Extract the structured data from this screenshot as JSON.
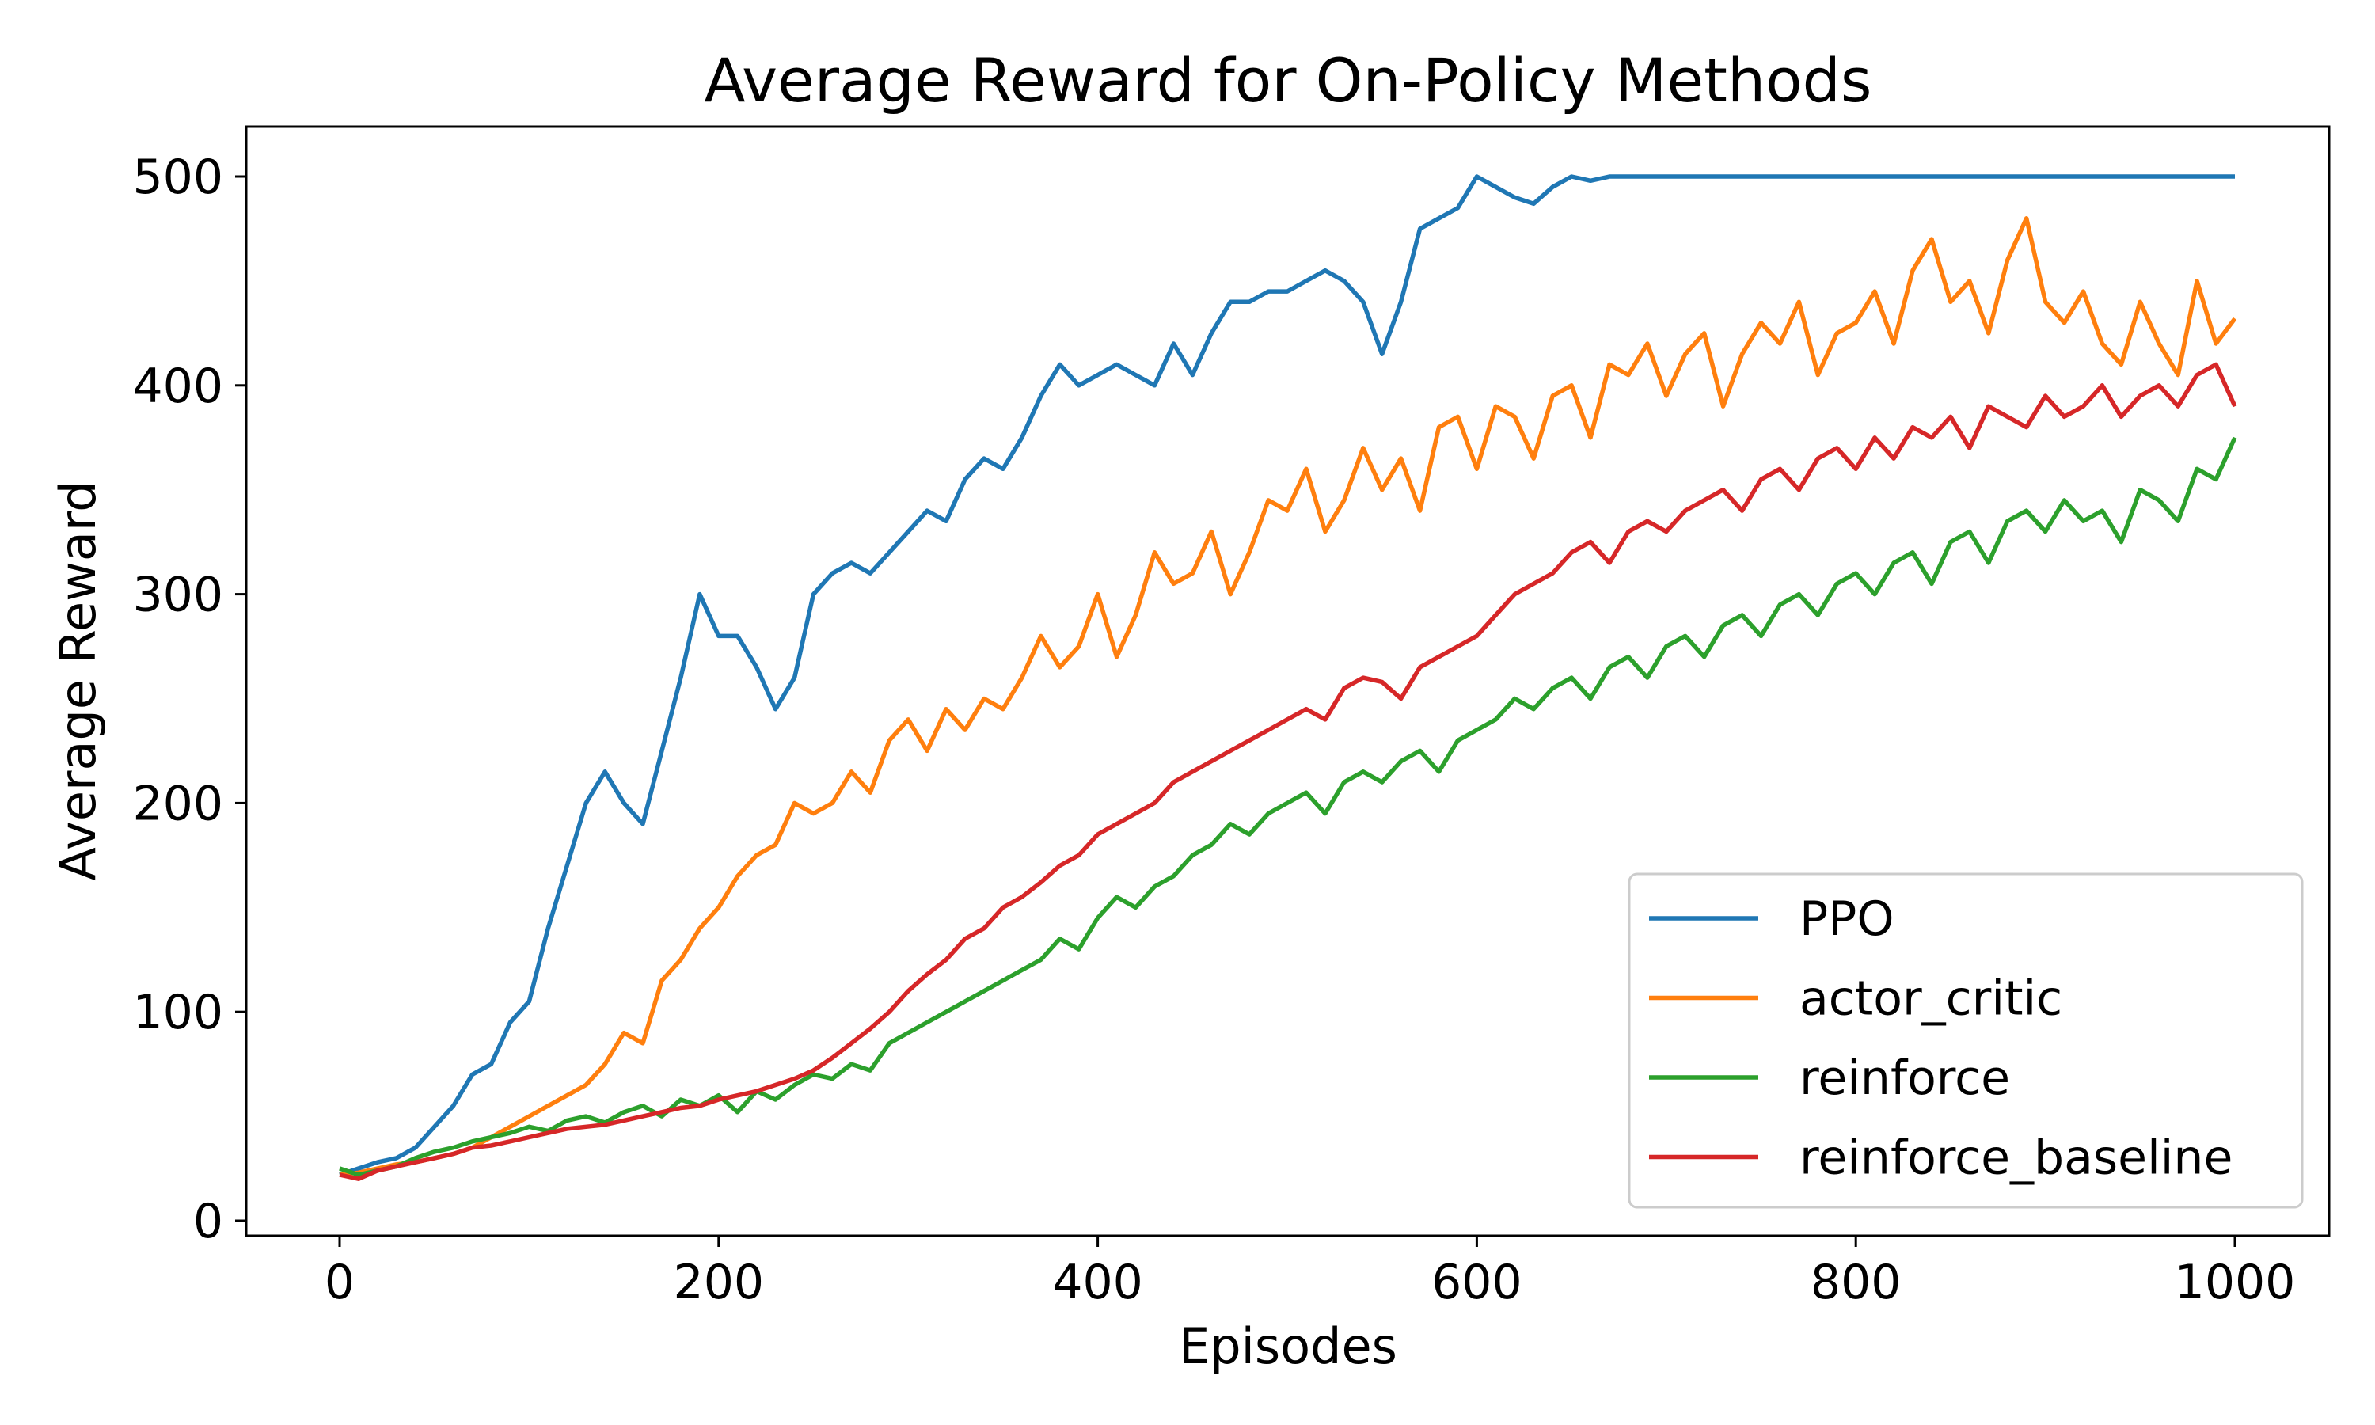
{
  "chart_data": {
    "type": "line",
    "title": "Average Reward for On-Policy Methods",
    "xlabel": "Episodes",
    "ylabel": "Average Reward",
    "xlim": [
      -50,
      1050
    ],
    "ylim": [
      -7,
      525
    ],
    "xticks": [
      0,
      200,
      400,
      600,
      800,
      1000
    ],
    "yticks": [
      0,
      100,
      200,
      300,
      400,
      500
    ],
    "grid": false,
    "legend_position": "lower-right",
    "x": [
      0,
      10,
      20,
      30,
      40,
      50,
      60,
      70,
      80,
      90,
      100,
      110,
      120,
      130,
      140,
      150,
      160,
      170,
      180,
      190,
      200,
      210,
      220,
      230,
      240,
      250,
      260,
      270,
      280,
      290,
      300,
      310,
      320,
      330,
      340,
      350,
      360,
      370,
      380,
      390,
      400,
      410,
      420,
      430,
      440,
      450,
      460,
      470,
      480,
      490,
      500,
      510,
      520,
      530,
      540,
      550,
      560,
      570,
      580,
      590,
      600,
      610,
      620,
      630,
      640,
      650,
      660,
      670,
      680,
      690,
      700,
      710,
      720,
      730,
      740,
      750,
      760,
      770,
      780,
      790,
      800,
      810,
      820,
      830,
      840,
      850,
      860,
      870,
      880,
      890,
      900,
      910,
      920,
      930,
      940,
      950,
      960,
      970,
      980,
      990,
      1000
    ],
    "series": [
      {
        "name": "PPO",
        "color": "#1f77b4",
        "values": [
          22,
          25,
          28,
          30,
          35,
          45,
          55,
          70,
          75,
          95,
          105,
          140,
          170,
          200,
          215,
          200,
          190,
          225,
          260,
          300,
          280,
          280,
          265,
          245,
          260,
          300,
          310,
          315,
          310,
          320,
          330,
          340,
          335,
          355,
          365,
          360,
          375,
          395,
          410,
          400,
          405,
          410,
          405,
          400,
          420,
          405,
          425,
          440,
          440,
          445,
          445,
          450,
          455,
          450,
          440,
          415,
          440,
          475,
          480,
          485,
          500,
          495,
          490,
          487,
          495,
          500,
          498,
          500,
          500,
          500,
          500,
          500,
          500,
          500,
          500,
          500,
          500,
          500,
          500,
          500,
          500,
          500,
          500,
          500,
          500,
          500,
          500,
          500,
          500,
          500,
          500,
          500,
          500,
          500,
          500,
          500,
          500,
          500,
          500,
          500,
          500
        ]
      },
      {
        "name": "actor_critic",
        "color": "#ff7f0e",
        "values": [
          22,
          23,
          25,
          27,
          28,
          30,
          32,
          35,
          40,
          45,
          50,
          55,
          60,
          65,
          75,
          90,
          85,
          115,
          125,
          140,
          150,
          165,
          175,
          180,
          200,
          195,
          200,
          215,
          205,
          230,
          240,
          225,
          245,
          235,
          250,
          245,
          260,
          280,
          265,
          275,
          300,
          270,
          290,
          320,
          305,
          310,
          330,
          300,
          320,
          345,
          340,
          360,
          330,
          345,
          370,
          350,
          365,
          340,
          380,
          385,
          360,
          390,
          385,
          365,
          395,
          400,
          375,
          410,
          405,
          420,
          395,
          415,
          425,
          390,
          415,
          430,
          420,
          440,
          405,
          425,
          430,
          445,
          420,
          455,
          470,
          440,
          450,
          425,
          460,
          480,
          440,
          430,
          445,
          420,
          410,
          440,
          420,
          405,
          450,
          420,
          432
        ]
      },
      {
        "name": "reinforce",
        "color": "#2ca02c",
        "values": [
          25,
          22,
          24,
          26,
          30,
          33,
          35,
          38,
          40,
          42,
          45,
          43,
          48,
          50,
          47,
          52,
          55,
          50,
          58,
          55,
          60,
          52,
          62,
          58,
          65,
          70,
          68,
          75,
          72,
          85,
          90,
          95,
          100,
          105,
          110,
          115,
          120,
          125,
          135,
          130,
          145,
          155,
          150,
          160,
          165,
          175,
          180,
          190,
          185,
          195,
          200,
          205,
          195,
          210,
          215,
          210,
          220,
          225,
          215,
          230,
          235,
          240,
          250,
          245,
          255,
          260,
          250,
          265,
          270,
          260,
          275,
          280,
          270,
          285,
          290,
          280,
          295,
          300,
          290,
          305,
          310,
          300,
          315,
          320,
          305,
          325,
          330,
          315,
          335,
          340,
          330,
          345,
          335,
          340,
          325,
          350,
          345,
          335,
          360,
          355,
          375
        ]
      },
      {
        "name": "reinforce_baseline",
        "color": "#d62728",
        "values": [
          22,
          20,
          24,
          26,
          28,
          30,
          32,
          35,
          36,
          38,
          40,
          42,
          44,
          45,
          46,
          48,
          50,
          52,
          54,
          55,
          58,
          60,
          62,
          65,
          68,
          72,
          78,
          85,
          92,
          100,
          110,
          118,
          125,
          135,
          140,
          150,
          155,
          162,
          170,
          175,
          185,
          190,
          195,
          200,
          210,
          215,
          220,
          225,
          230,
          235,
          240,
          245,
          240,
          255,
          260,
          258,
          250,
          265,
          270,
          275,
          280,
          290,
          300,
          305,
          310,
          320,
          325,
          315,
          330,
          335,
          330,
          340,
          345,
          350,
          340,
          355,
          360,
          350,
          365,
          370,
          360,
          375,
          365,
          380,
          375,
          385,
          370,
          390,
          385,
          380,
          395,
          385,
          390,
          400,
          385,
          395,
          400,
          390,
          405,
          410,
          390
        ]
      }
    ]
  }
}
